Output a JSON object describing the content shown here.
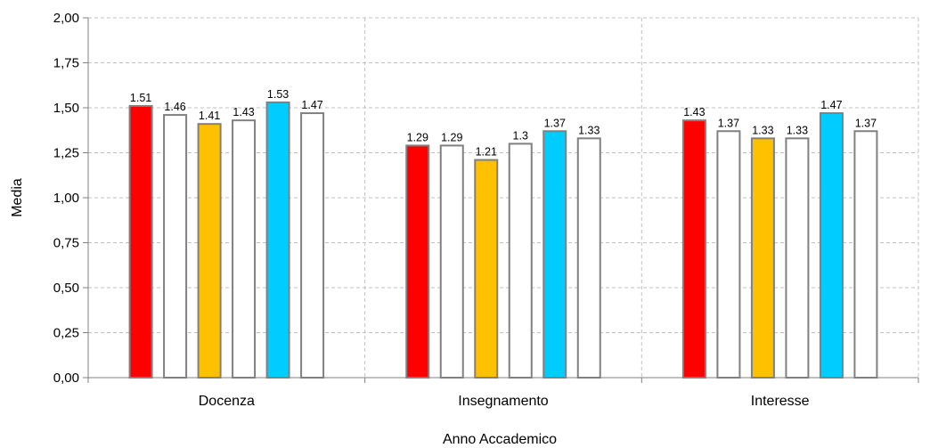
{
  "chart_data": {
    "type": "bar",
    "title": "",
    "xlabel": "Anno Accademico",
    "ylabel": "Media",
    "ylim": [
      0,
      2
    ],
    "yticks": [
      "0,00",
      "0,25",
      "0,50",
      "0,75",
      "1,00",
      "1,25",
      "1,50",
      "1,75",
      "2,00"
    ],
    "grid": true,
    "legend": "none",
    "categories": [
      "Docenza",
      "Insegnamento",
      "Interesse"
    ],
    "series": [
      {
        "color": "#ff0000",
        "values": [
          1.51,
          1.29,
          1.43
        ],
        "labels": [
          "1.51",
          "1.29",
          "1.43"
        ]
      },
      {
        "color": "#ffffff",
        "values": [
          1.46,
          1.29,
          1.37
        ],
        "labels": [
          "1.46",
          "1.29",
          "1.37"
        ]
      },
      {
        "color": "#ffc000",
        "values": [
          1.41,
          1.21,
          1.33
        ],
        "labels": [
          "1.41",
          "1.21",
          "1.33"
        ]
      },
      {
        "color": "#ffffff",
        "values": [
          1.43,
          1.3,
          1.33
        ],
        "labels": [
          "1.43",
          "1.3",
          "1.33"
        ]
      },
      {
        "color": "#00ccff",
        "values": [
          1.53,
          1.37,
          1.47
        ],
        "labels": [
          "1.53",
          "1.37",
          "1.47"
        ]
      },
      {
        "color": "#ffffff",
        "values": [
          1.47,
          1.33,
          1.37
        ],
        "labels": [
          "1.47",
          "1.33",
          "1.37"
        ]
      }
    ],
    "colors": {
      "bar_border": "#808080",
      "grid": "#c0c0c0",
      "axis": "#808080"
    }
  }
}
